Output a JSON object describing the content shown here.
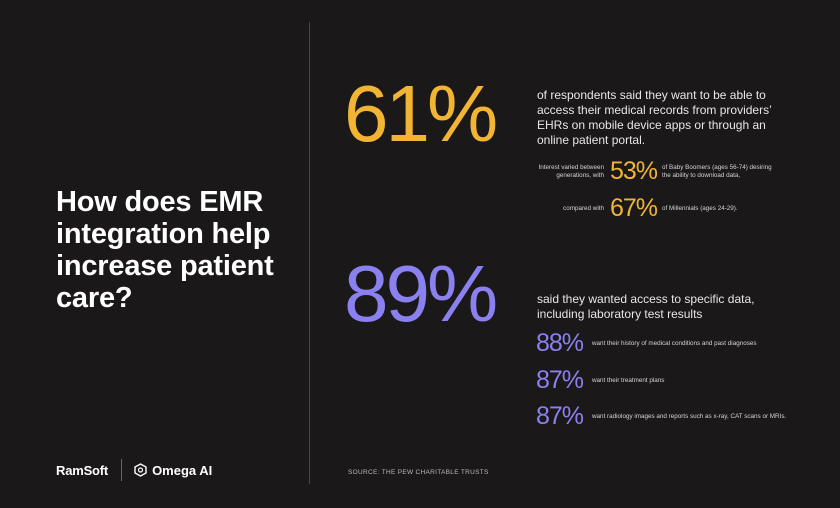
{
  "headline": "How does EMR integration help increase patient care?",
  "brand": {
    "left": "RamSoft",
    "right": "Omega AI"
  },
  "stat1": {
    "value": "61%",
    "text": "of respondents said they want to be able to access their medical records from providers’ EHRs on mobile device apps or through an online patient portal.",
    "sub1": {
      "prefix": "Interest varied between generations, with",
      "value": "53%",
      "suffix": "of Baby Boomers (ages 56-74) desiring the ability to download data,"
    },
    "sub2": {
      "prefix": "compared with",
      "value": "67%",
      "suffix": "of Millennials (ages 24-29)."
    }
  },
  "stat2": {
    "value": "89%",
    "text": "said they wanted access to specific data, including laboratory test results",
    "items": [
      {
        "value": "88%",
        "text": "want their history of medical conditions and past diagnoses"
      },
      {
        "value": "87%",
        "text": "want their treatment plans"
      },
      {
        "value": "87%",
        "text": "want radiology images and reports such as x-ray, CAT scans or MRIs."
      }
    ]
  },
  "source": "SOURCE: THE PEW CHARITABLE TRUSTS",
  "colors": {
    "background": "#1b1819",
    "yellow": "#f2b533",
    "purple": "#8b80f0"
  }
}
